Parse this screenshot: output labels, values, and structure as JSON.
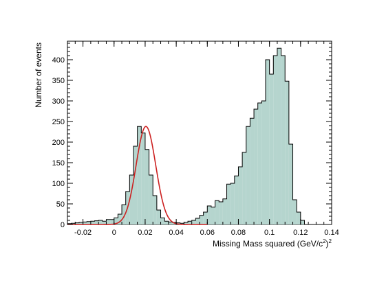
{
  "chart_data": {
    "type": "bar",
    "xlabel": "Missing Mass squared (GeV/c",
    "xlabel_sup_inner": "2",
    "xlabel_close": ")",
    "xlabel_sup_outer": "2",
    "ylabel": "Number of events",
    "xlim": [
      -0.03,
      0.14
    ],
    "ylim": [
      0,
      445
    ],
    "x_ticks": [
      -0.02,
      0,
      0.02,
      0.04,
      0.06,
      0.08,
      0.1,
      0.12,
      0.14
    ],
    "x_tick_labels": [
      "-0.02",
      "0",
      "0.02",
      "0.04",
      "0.06",
      "0.08",
      "0.1",
      "0.12",
      "0.14"
    ],
    "y_ticks": [
      0,
      50,
      100,
      150,
      200,
      250,
      300,
      350,
      400
    ],
    "y_tick_labels": [
      "0",
      "50",
      "100",
      "150",
      "200",
      "250",
      "300",
      "350",
      "400"
    ],
    "bin_width": 0.0025,
    "bin_edges_start": -0.03,
    "values": [
      2,
      3,
      4,
      5,
      6,
      7,
      8,
      9,
      10,
      8,
      12,
      12,
      16,
      25,
      48,
      80,
      120,
      190,
      238,
      222,
      182,
      120,
      70,
      35,
      16,
      8,
      6,
      5,
      4,
      3,
      5,
      8,
      10,
      15,
      22,
      30,
      45,
      42,
      58,
      55,
      62,
      98,
      100,
      118,
      140,
      175,
      238,
      258,
      280,
      295,
      300,
      400,
      365,
      410,
      428,
      410,
      348,
      195,
      60,
      30,
      10
    ],
    "fill_color": "#b5d5ce",
    "outline_color": "#000000",
    "fit": {
      "type": "gaussian",
      "color": "#cc2020",
      "mean": 0.0205,
      "sigma": 0.0063,
      "amplitude": 238,
      "range": [
        -0.03,
        0.06
      ]
    }
  }
}
